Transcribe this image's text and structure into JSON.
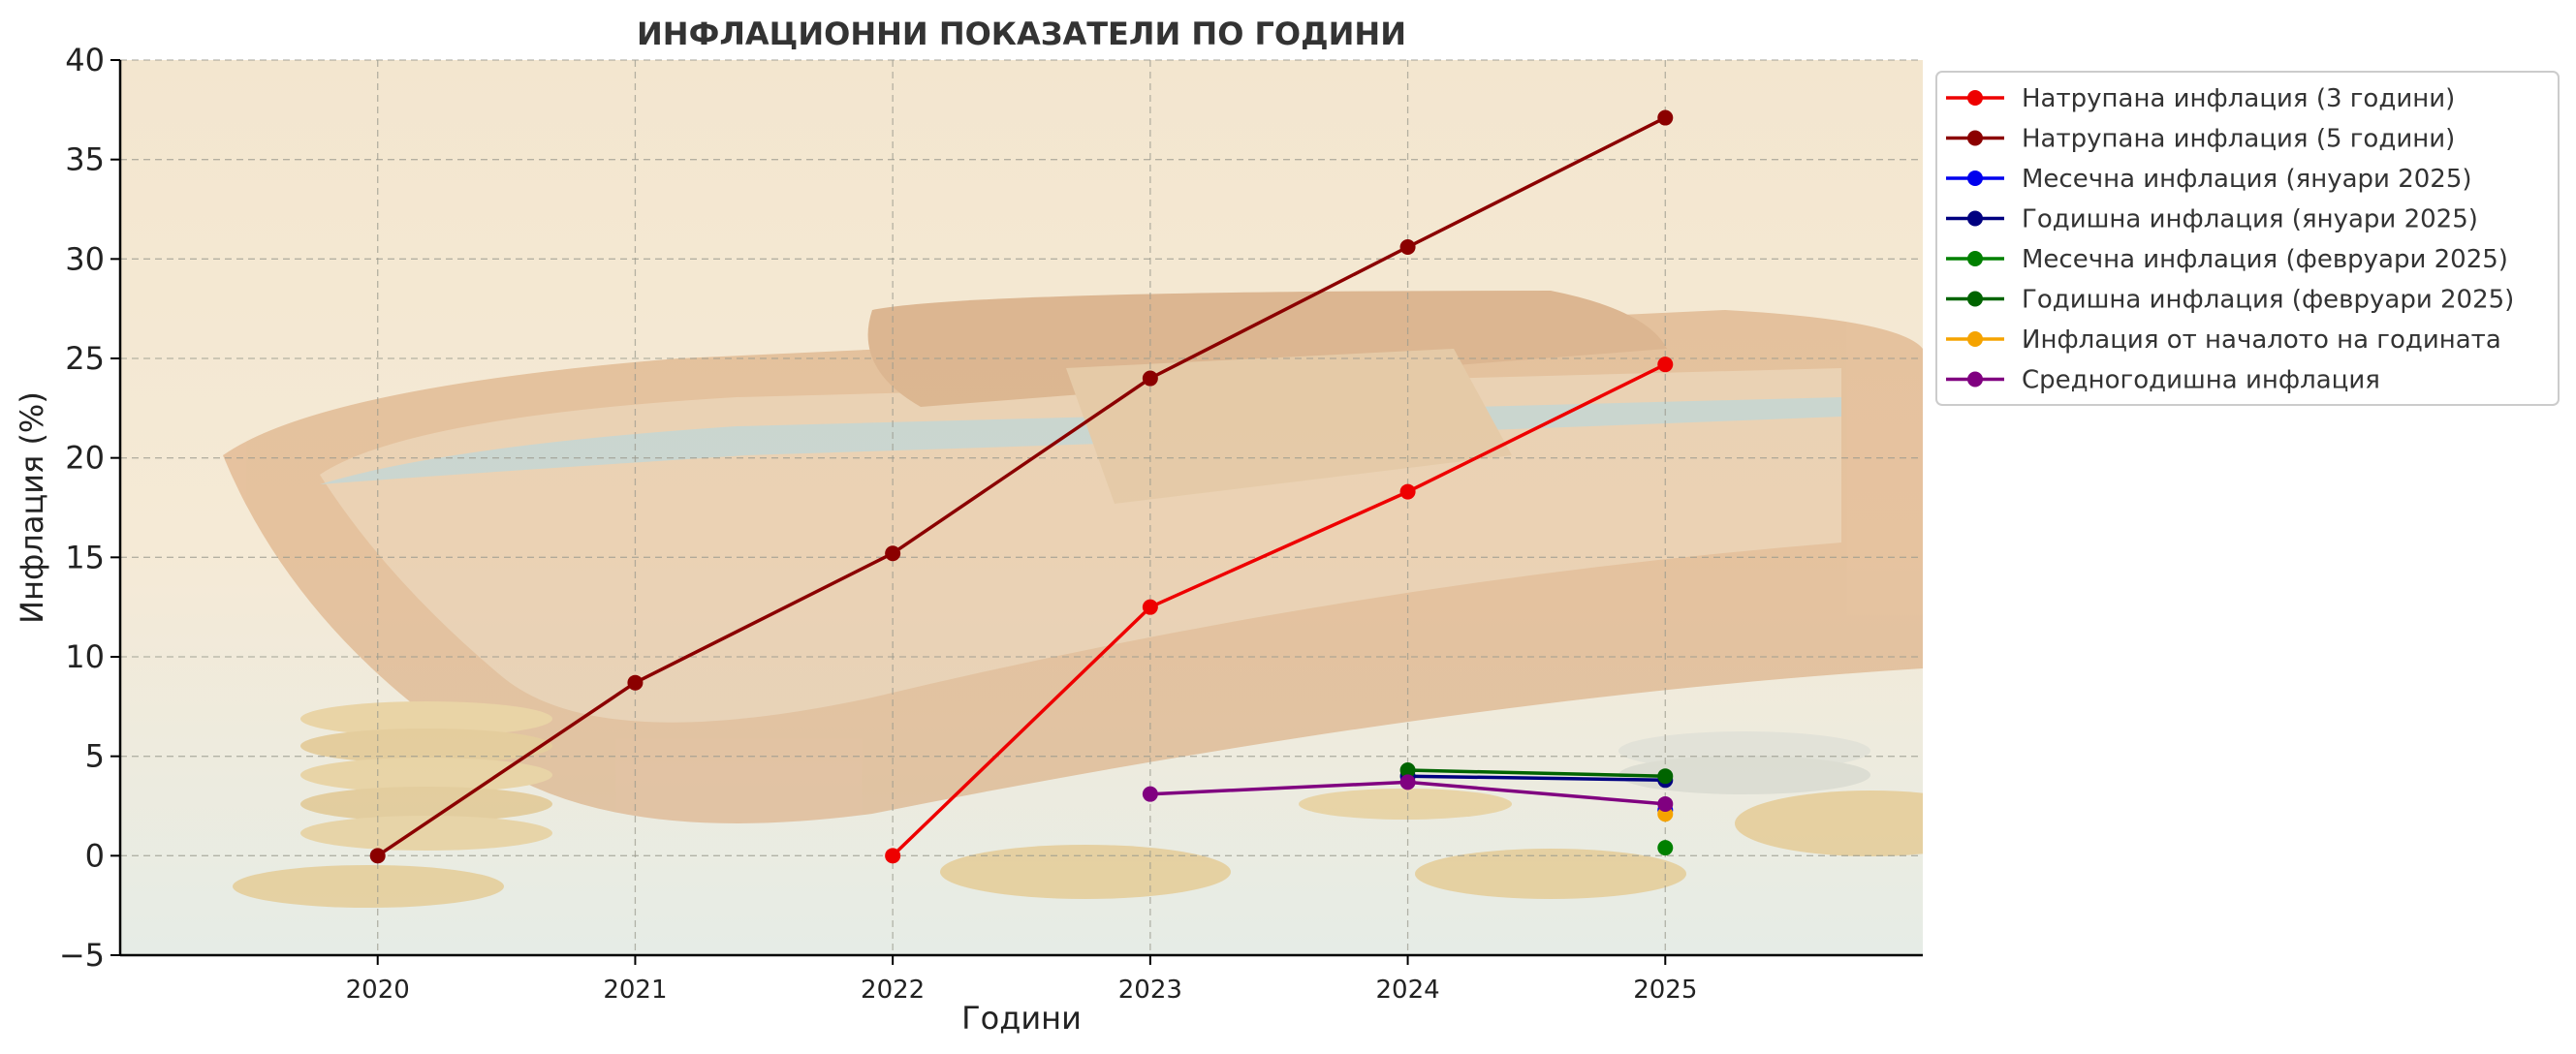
{
  "chart_data": {
    "type": "line",
    "title": "ИНФЛАЦИОННИ ПОКАЗАТЕЛИ ПО ГОДИНИ",
    "xlabel": "Години",
    "ylabel": "Инфлация (%)",
    "xlim": [
      2019,
      2026
    ],
    "ylim": [
      -5,
      40
    ],
    "x_ticks": [
      "2020",
      "2021",
      "2022",
      "2023",
      "2024",
      "2025"
    ],
    "y_ticks": [
      "−5",
      "0",
      "5",
      "10",
      "15",
      "20",
      "25",
      "30",
      "35",
      "40"
    ],
    "y_tick_values": [
      -5,
      0,
      5,
      10,
      15,
      20,
      25,
      30,
      35,
      40
    ],
    "x_tick_values": [
      2020,
      2021,
      2022,
      2023,
      2024,
      2025
    ],
    "grid": true,
    "legend_position": "outside-right-top",
    "background": "wallet-with-coins-photo",
    "series": [
      {
        "name": "Натрупана инфлация (3 години)",
        "color": "#ee0000",
        "points": [
          [
            2022,
            0
          ],
          [
            2023,
            12.5
          ],
          [
            2024,
            18.3
          ],
          [
            2025,
            24.7
          ]
        ]
      },
      {
        "name": "Натрупана инфлация (5 години)",
        "color": "#8b0000",
        "points": [
          [
            2020,
            0
          ],
          [
            2021,
            8.7
          ],
          [
            2022,
            15.2
          ],
          [
            2023,
            24.0
          ],
          [
            2024,
            30.6
          ],
          [
            2025,
            37.1
          ]
        ]
      },
      {
        "name": "Месечна инфлация (януари 2025)",
        "color": "#0000ee",
        "points": [
          [
            2025,
            2.3
          ]
        ]
      },
      {
        "name": "Годишна инфлация (януари 2025)",
        "color": "#000080",
        "points": [
          [
            2024,
            4.0
          ],
          [
            2025,
            3.8
          ]
        ]
      },
      {
        "name": "Месечна инфлация (февруари 2025)",
        "color": "#008000",
        "points": [
          [
            2025,
            0.4
          ]
        ]
      },
      {
        "name": "Годишна инфлация (февруари 2025)",
        "color": "#006400",
        "points": [
          [
            2024,
            4.3
          ],
          [
            2025,
            4.0
          ]
        ]
      },
      {
        "name": "Инфлация от началото на годината",
        "color": "#f5a300",
        "points": [
          [
            2025,
            2.1
          ]
        ]
      },
      {
        "name": "Средногодишна инфлация",
        "color": "#800080",
        "points": [
          [
            2023,
            3.1
          ],
          [
            2024,
            3.7
          ],
          [
            2025,
            2.6
          ]
        ]
      }
    ]
  }
}
